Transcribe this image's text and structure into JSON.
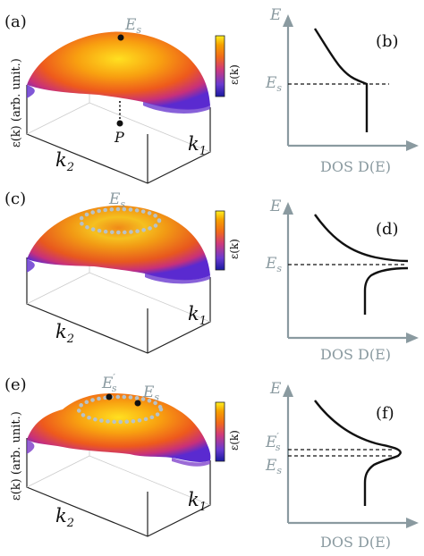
{
  "panels": {
    "a": {
      "label": "(a)",
      "es_label": "E",
      "es_sub": "s",
      "point_label": "P"
    },
    "b": {
      "label": "(b)"
    },
    "c": {
      "label": "(c)",
      "es_label": "E",
      "es_sub": "s"
    },
    "d": {
      "label": "(d)"
    },
    "e": {
      "label": "(e)",
      "es_label": "E",
      "es_sub": "s",
      "esp_label": "E",
      "esp_sub": "s",
      "esp_prime": "′"
    },
    "f": {
      "label": "(f)"
    }
  },
  "surface_axes": {
    "z_label": "ε(k) (arb. unit.)",
    "k2": "k",
    "k2_sub": "2",
    "k1": "k",
    "k1_sub": "1"
  },
  "colorbar": {
    "label": "ε(k)",
    "colors": [
      "#1a1aa0",
      "#6a3ad0",
      "#d03a7a",
      "#f06a1a",
      "#f6a000",
      "#fff020"
    ]
  },
  "dos_axes": {
    "y_label": "E",
    "x_label": "DOS D(E)",
    "es_label": "E",
    "es_sub": "s",
    "prime": "′"
  }
}
